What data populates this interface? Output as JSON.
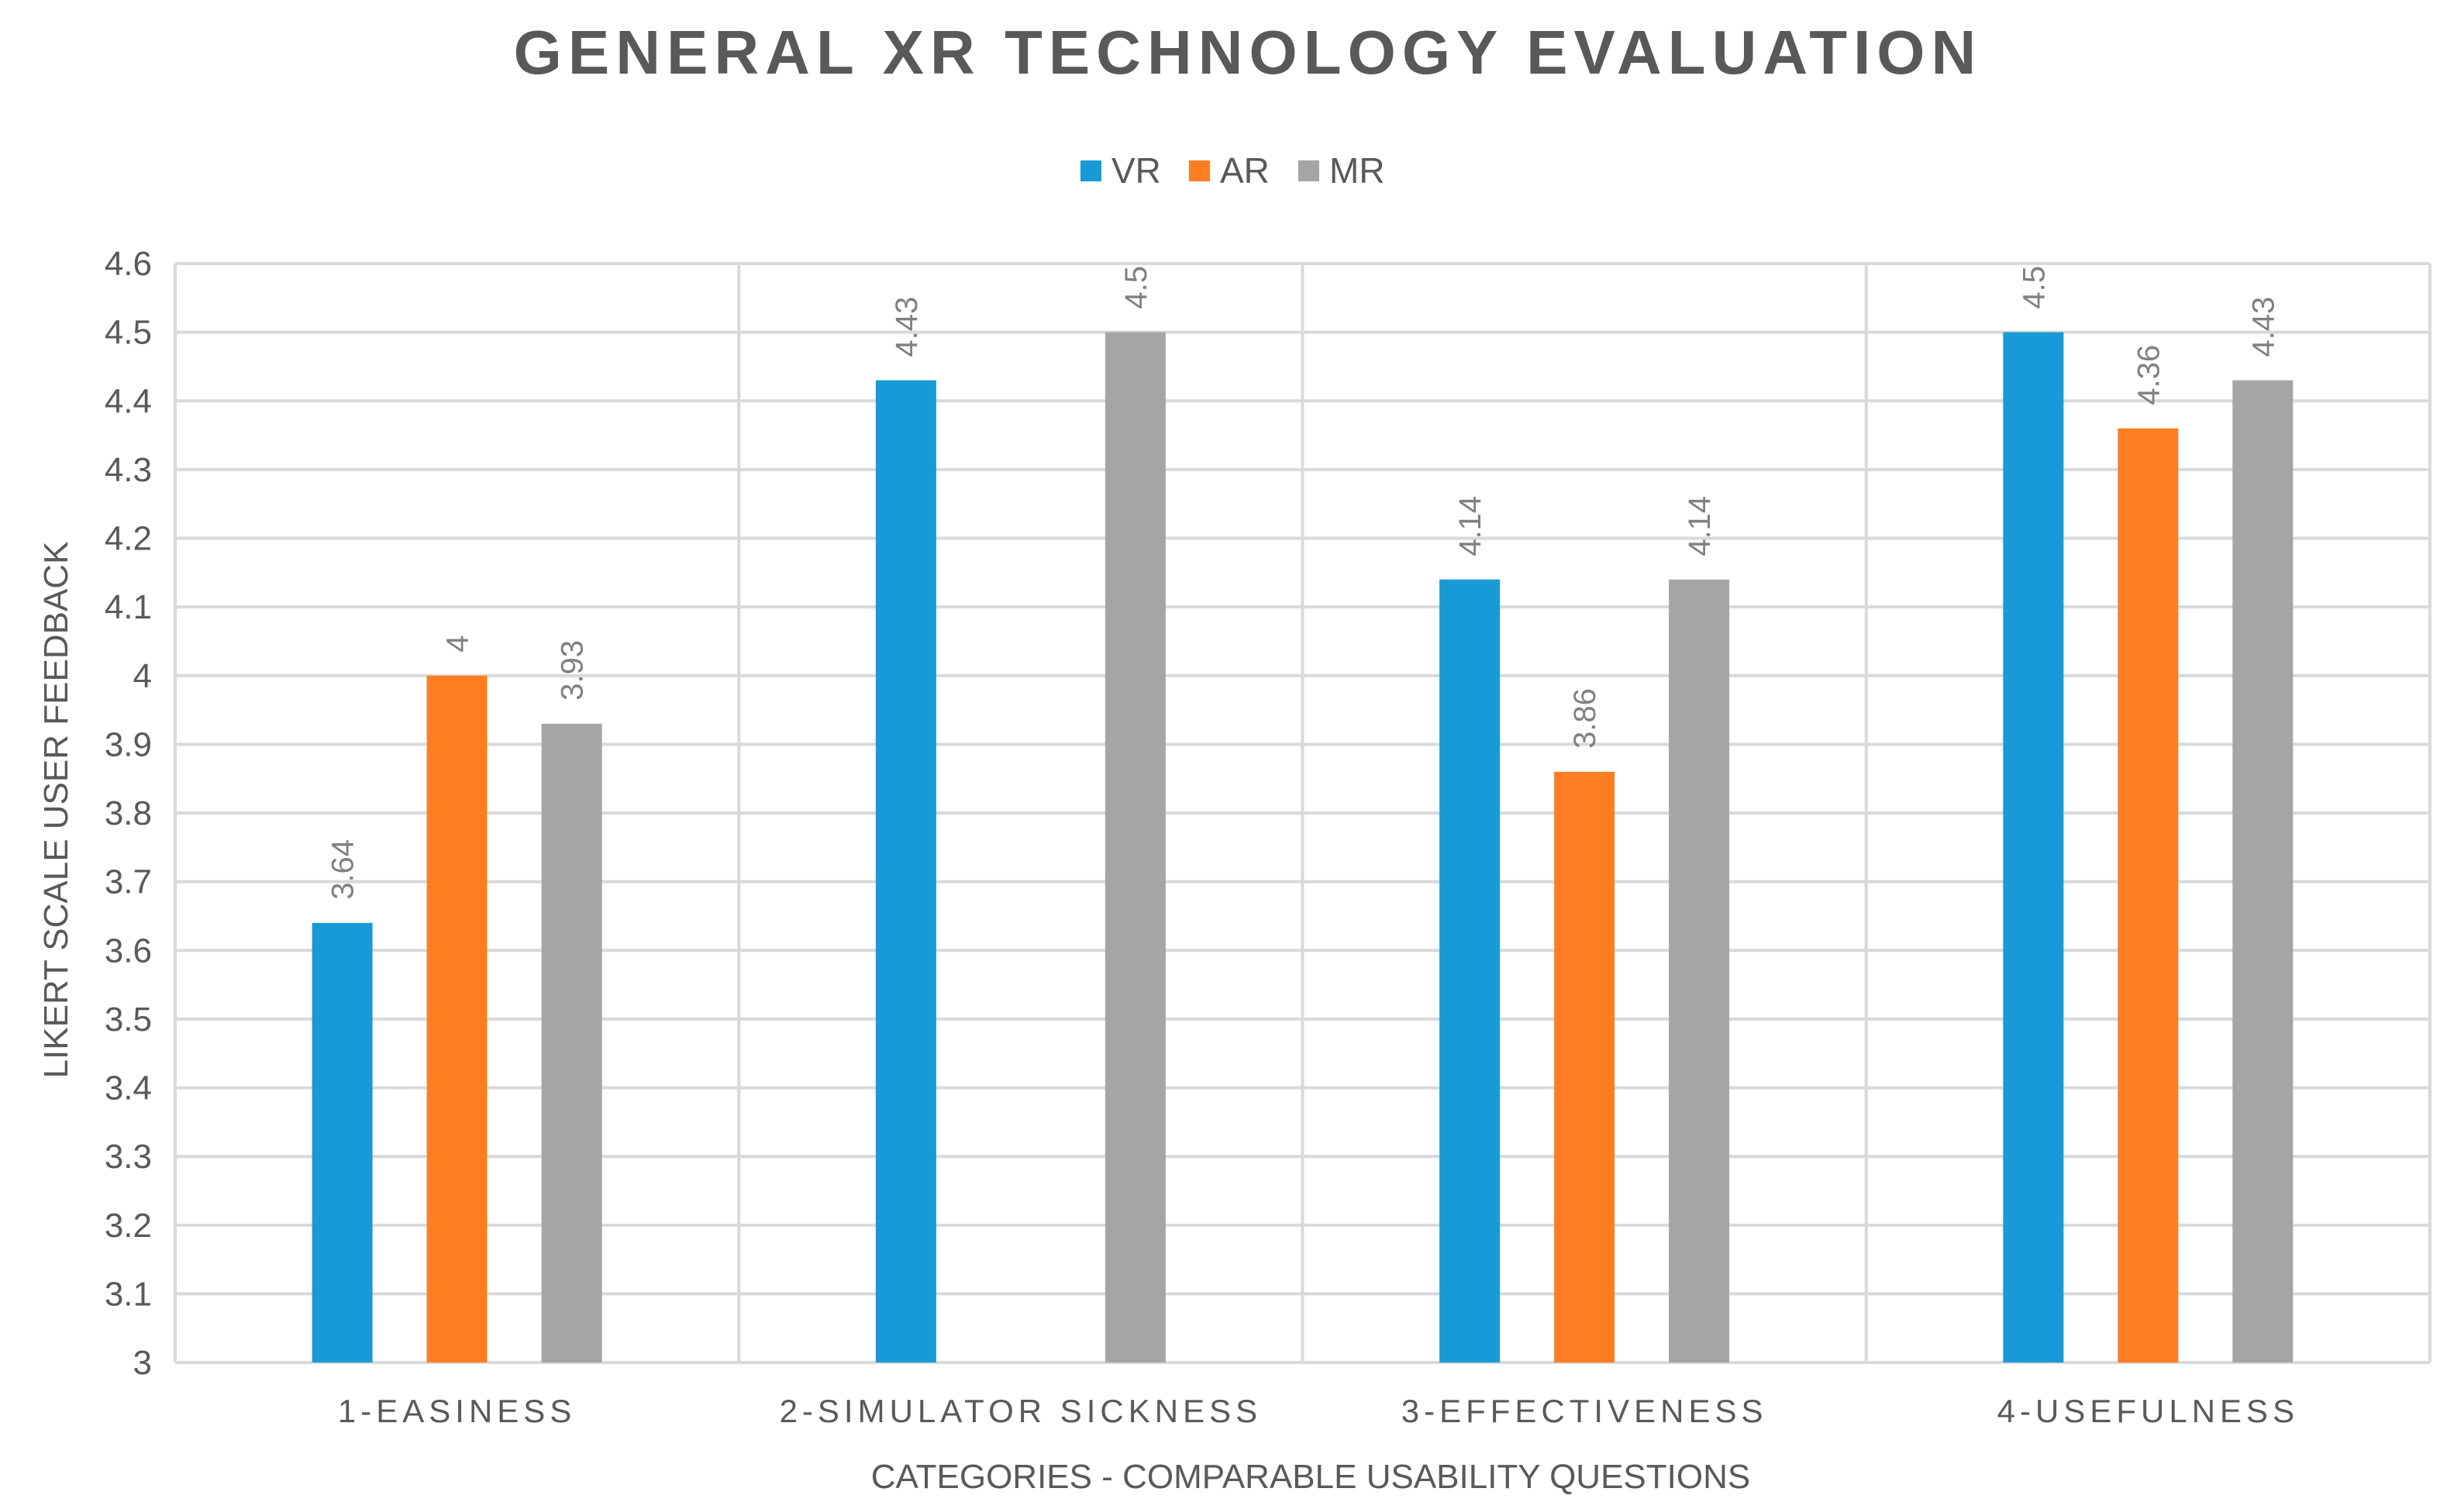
{
  "chart_data": {
    "type": "bar",
    "title": "GENERAL XR TECHNOLOGY EVALUATION",
    "xlabel": "CATEGORIES - COMPARABLE USABILITY QUESTIONS",
    "ylabel": "LIKERT SCALE USER FEEDBACK",
    "categories": [
      "1-EASINESS",
      "2-SIMULATOR SICKNESS",
      "3-EFFECTIVENESS",
      "4-USEFULNESS"
    ],
    "series": [
      {
        "name": "VR",
        "color": "#189ad6",
        "values": [
          3.64,
          4.43,
          4.14,
          4.5
        ],
        "labels": [
          "3.64",
          "4.43",
          "4.14",
          "4.5"
        ]
      },
      {
        "name": "AR",
        "color": "#fd7e22",
        "values": [
          4,
          null,
          3.86,
          4.36
        ],
        "labels": [
          "4",
          "",
          "3.86",
          "4.36"
        ]
      },
      {
        "name": "MR",
        "color": "#a5a5a5",
        "values": [
          3.93,
          4.5,
          4.14,
          4.43
        ],
        "labels": [
          "3.93",
          "4.5",
          "4.14",
          "4.43"
        ]
      }
    ],
    "ylim": [
      3,
      4.6
    ],
    "yticks": [
      "3",
      "3.1",
      "3.2",
      "3.3",
      "3.4",
      "3.5",
      "3.6",
      "3.7",
      "3.8",
      "3.9",
      "4",
      "4.1",
      "4.2",
      "4.3",
      "4.4",
      "4.5",
      "4.6"
    ],
    "grid": true,
    "legend": "top-center"
  }
}
